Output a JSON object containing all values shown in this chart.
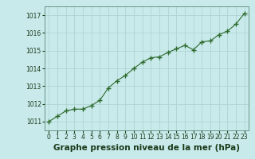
{
  "x": [
    0,
    1,
    2,
    3,
    4,
    5,
    6,
    7,
    8,
    9,
    10,
    11,
    12,
    13,
    14,
    15,
    16,
    17,
    18,
    19,
    20,
    21,
    22,
    23
  ],
  "y": [
    1011.0,
    1011.3,
    1011.6,
    1011.7,
    1011.7,
    1011.9,
    1012.2,
    1012.9,
    1013.3,
    1013.6,
    1014.0,
    1014.35,
    1014.6,
    1014.65,
    1014.9,
    1015.1,
    1015.3,
    1015.05,
    1015.5,
    1015.55,
    1015.9,
    1016.1,
    1016.5,
    1017.1
  ],
  "line_color": "#2d6a2d",
  "marker": "+",
  "marker_size": 5,
  "bg_color": "#c8eaea",
  "grid_color": "#b0d4d4",
  "xlabel": "Graphe pression niveau de la mer (hPa)",
  "xlabel_fontsize": 7.5,
  "xlabel_color": "#1a3a1a",
  "ylim": [
    1010.5,
    1017.5
  ],
  "xlim": [
    -0.5,
    23.5
  ],
  "yticks": [
    1011,
    1012,
    1013,
    1014,
    1015,
    1016,
    1017
  ],
  "xticks": [
    0,
    1,
    2,
    3,
    4,
    5,
    6,
    7,
    8,
    9,
    10,
    11,
    12,
    13,
    14,
    15,
    16,
    17,
    18,
    19,
    20,
    21,
    22,
    23
  ],
  "tick_fontsize": 5.5,
  "tick_color": "#1a3a1a"
}
